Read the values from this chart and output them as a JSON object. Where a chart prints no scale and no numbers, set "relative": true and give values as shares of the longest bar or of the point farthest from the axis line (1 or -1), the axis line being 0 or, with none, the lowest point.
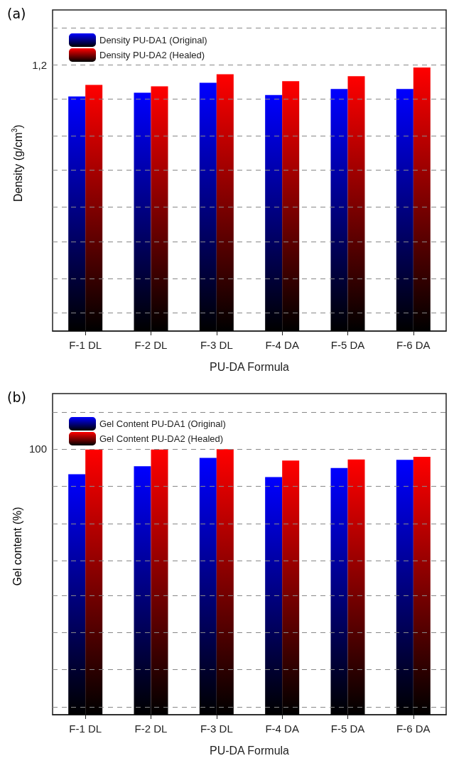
{
  "chart_data": [
    {
      "type": "bar",
      "title": "(a)",
      "xlabel": "PU-DA Formula",
      "ylabel": "Density (g/cm$^{3}$)",
      "relative": true,
      "categories": [
        "F-1 DL",
        "F-2 DL",
        "F-3 DL",
        "F-4 DA",
        "F-5 DA",
        "F-6 DA"
      ],
      "series": [
        {
          "name": "Density PU-DA1 (Original)",
          "color": "#0000ff",
          "values": [
            0.89,
            0.904,
            0.942,
            0.895,
            0.918,
            0.918
          ]
        },
        {
          "name": "Density PU-DA2 (Healed)",
          "color": "#ff0000",
          "values": [
            0.934,
            0.928,
            0.974,
            0.948,
            0.967,
            1
          ]
        }
      ],
      "ref_lines": [
        {
          "axis": "y",
          "value": 1.149,
          "label": null,
          "line_style": "dashed",
          "color": "#888888"
        },
        {
          "axis": "y",
          "value": 1.009,
          "label": null,
          "line_style": "dashed",
          "color": "#888888"
        },
        {
          "axis": "y",
          "value": 0.879,
          "label": null,
          "line_style": "dashed",
          "color": "#888888"
        },
        {
          "axis": "y",
          "value": 0.743,
          "label": null,
          "line_style": "dashed",
          "color": "#888888"
        },
        {
          "axis": "y",
          "value": 0.608,
          "label": null,
          "line_style": "dashed",
          "color": "#888888"
        },
        {
          "axis": "y",
          "value": 0.474,
          "label": null,
          "line_style": "dashed",
          "color": "#888888"
        },
        {
          "axis": "y",
          "value": 0.339,
          "label": null,
          "line_style": "dashed",
          "color": "#888888"
        },
        {
          "axis": "y",
          "value": 0.198,
          "label": null,
          "line_style": "dashed",
          "color": "#888888"
        },
        {
          "axis": "y",
          "value": 0.068,
          "label": null,
          "line_style": "dashed",
          "color": "#888888"
        }
      ],
      "annotations": [
        "1,2"
      ],
      "legend": "top left"
    },
    {
      "type": "bar",
      "title": "(b)",
      "xlabel": "PU-DA Formula",
      "ylabel": "Gel content (%)",
      "relative": true,
      "categories": [
        "F-1 DL",
        "F-2 DL",
        "F-3 DL",
        "F-4 DA",
        "F-5 DA",
        "F-6 DA"
      ],
      "series": [
        {
          "name": "Gel Content PU-DA1 (Original)",
          "color": "#0000ff",
          "values": [
            0.906,
            0.936,
            0.967,
            0.895,
            0.929,
            0.96
          ]
        },
        {
          "name": "Gel Content PU-DA2 (Healed)",
          "color": "#ff0000",
          "values": [
            0.999,
            0.999,
            1,
            0.957,
            0.961,
            0.971
          ]
        }
      ],
      "ref_lines": [
        {
          "axis": "y",
          "value": 1.141,
          "label": null,
          "line_style": "dashed",
          "color": "#888888"
        },
        {
          "axis": "y",
          "value": 1.001,
          "label": null,
          "line_style": "dashed",
          "color": "#888888"
        },
        {
          "axis": "y",
          "value": 0.863,
          "label": null,
          "line_style": "dashed",
          "color": "#888888"
        },
        {
          "axis": "y",
          "value": 0.719,
          "label": null,
          "line_style": "dashed",
          "color": "#888888"
        },
        {
          "axis": "y",
          "value": 0.579,
          "label": null,
          "line_style": "dashed",
          "color": "#888888"
        },
        {
          "axis": "y",
          "value": 0.446,
          "label": null,
          "line_style": "dashed",
          "color": "#888888"
        },
        {
          "axis": "y",
          "value": 0.307,
          "label": null,
          "line_style": "dashed",
          "color": "#888888"
        },
        {
          "axis": "y",
          "value": 0.168,
          "label": null,
          "line_style": "dashed",
          "color": "#888888"
        },
        {
          "axis": "y",
          "value": 0.029,
          "label": null,
          "line_style": "dashed",
          "color": "#888888"
        }
      ],
      "annotations": [
        "100"
      ],
      "legend": "top left"
    }
  ]
}
